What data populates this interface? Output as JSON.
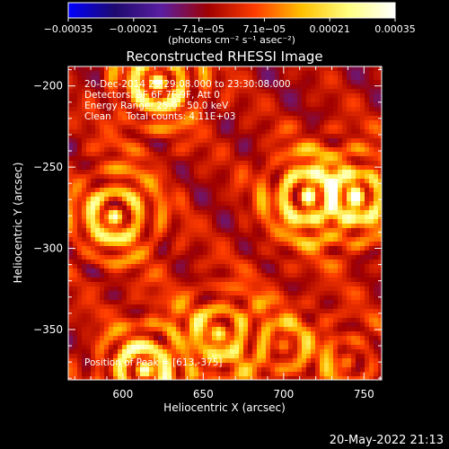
{
  "chart_data": {
    "type": "heatmap",
    "title": "Reconstructed RHESSI Image",
    "xlabel": "Heliocentric X (arcsec)",
    "ylabel": "Heliocentric Y (arcsec)",
    "xlim": [
      566,
      761
    ],
    "ylim": [
      -381,
      -188
    ],
    "xticks": [
      600,
      650,
      700,
      750
    ],
    "yticks": [
      -200,
      -250,
      -300,
      -350
    ],
    "colorbar": {
      "range": [
        -0.00035,
        0.00035
      ],
      "tick_labels": [
        "-0.00035",
        "-0.00021",
        "-7.1e-05",
        "7.1e-05",
        "0.00021",
        "0.00035"
      ],
      "unit_label": "(photons cm⁻² s⁻¹ asec⁻²)",
      "colors": [
        "#0000ff",
        "#1e0a6e",
        "#5a1ea0",
        "#a00000",
        "#ff3c00",
        "#ffc000",
        "#ffff80",
        "#ffffff"
      ]
    },
    "annotations": [
      "20-Dec-2014 23:29:08.000 to 23:30:08.000",
      "Detectors: 3F 6F 7F 9F, Att 0",
      "Energy Range: 25.0 - 50.0 keV",
      "Clean     Total counts: 4.11E+03",
      "Position of Peak = [613,-375]"
    ],
    "sources": [
      {
        "x": 622,
        "y": -198,
        "amp": 0.00036
      },
      {
        "x": 595,
        "y": -280,
        "amp": 0.00034
      },
      {
        "x": 715,
        "y": -268,
        "amp": 0.00033
      },
      {
        "x": 745,
        "y": -268,
        "amp": 0.0003
      },
      {
        "x": 613,
        "y": -375,
        "amp": 0.00036
      },
      {
        "x": 660,
        "y": -352,
        "amp": 0.00025
      },
      {
        "x": 700,
        "y": -360,
        "amp": 0.00016
      },
      {
        "x": 740,
        "y": -370,
        "amp": 0.00014
      }
    ],
    "peak": {
      "x": 613,
      "y": -375
    }
  },
  "footer": {
    "timestamp": "20-May-2022 21:13"
  }
}
